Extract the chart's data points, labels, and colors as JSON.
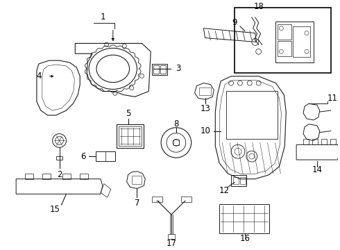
{
  "bg": "#ffffff",
  "lc": "#1a1a1a",
  "lw": 0.8,
  "thin": 0.5,
  "fs": 8.5,
  "figw": 4.9,
  "figh": 3.6,
  "dpi": 100
}
